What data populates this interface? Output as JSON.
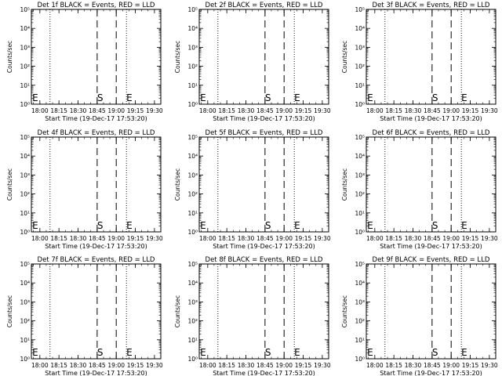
{
  "chart_data": [
    {
      "type": "line",
      "title": "Det 1f BLACK = Events, RED = LLD",
      "xlabel": "Start Time (19-Dec-17 17:53:20)",
      "ylabel": "Counts/sec",
      "xticks": [
        "18:00",
        "18:15",
        "18:30",
        "18:45",
        "19:00",
        "19:15",
        "19:30"
      ],
      "yticks": [
        "10⁰",
        "10¹",
        "10²",
        "10³",
        "10⁴",
        "10⁵"
      ],
      "ylim": [
        "10⁰",
        "10⁵"
      ],
      "xlim": [
        "17:53:20",
        "19:35"
      ],
      "yscale": "log",
      "dotted_lines": [
        "18:08",
        "19:08"
      ],
      "dashed_lines": [
        "18:45",
        "19:00"
      ],
      "markers": [
        {
          "text": "E",
          "x": "17:54"
        },
        {
          "text": "S",
          "x": "18:45"
        },
        {
          "text": "E",
          "x": "19:08"
        }
      ]
    },
    {
      "type": "line",
      "title": "Det 2f BLACK = Events, RED = LLD",
      "xlabel": "Start Time (19-Dec-17 17:53:20)",
      "ylabel": "Counts/sec",
      "xticks": [
        "18:00",
        "18:15",
        "18:30",
        "18:45",
        "19:00",
        "19:15",
        "19:30"
      ],
      "yticks": [
        "10⁰",
        "10¹",
        "10²",
        "10³",
        "10⁴",
        "10⁵"
      ],
      "ylim": [
        "10⁰",
        "10⁵"
      ],
      "xlim": [
        "17:53:20",
        "19:35"
      ],
      "yscale": "log",
      "dotted_lines": [
        "18:08",
        "19:08"
      ],
      "dashed_lines": [
        "18:45",
        "19:00"
      ],
      "markers": [
        {
          "text": "E",
          "x": "17:54"
        },
        {
          "text": "S",
          "x": "18:45"
        },
        {
          "text": "E",
          "x": "19:08"
        }
      ]
    },
    {
      "type": "line",
      "title": "Det 3f BLACK = Events, RED = LLD",
      "xlabel": "Start Time (19-Dec-17 17:53:20)",
      "ylabel": "Counts/sec",
      "xticks": [
        "18:00",
        "18:15",
        "18:30",
        "18:45",
        "19:00",
        "19:15",
        "19:30"
      ],
      "yticks": [
        "10⁰",
        "10¹",
        "10²",
        "10³",
        "10⁴",
        "10⁵"
      ],
      "ylim": [
        "10⁰",
        "10⁵"
      ],
      "xlim": [
        "17:53:20",
        "19:35"
      ],
      "yscale": "log",
      "dotted_lines": [
        "18:08",
        "19:08"
      ],
      "dashed_lines": [
        "18:45",
        "19:00"
      ],
      "markers": [
        {
          "text": "E",
          "x": "17:54"
        },
        {
          "text": "S",
          "x": "18:45"
        },
        {
          "text": "E",
          "x": "19:08"
        }
      ]
    },
    {
      "type": "line",
      "title": "Det 4f BLACK = Events, RED = LLD",
      "xlabel": "Start Time (19-Dec-17 17:53:20)",
      "ylabel": "Counts/sec",
      "xticks": [
        "18:00",
        "18:15",
        "18:30",
        "18:45",
        "19:00",
        "19:15",
        "19:30"
      ],
      "yticks": [
        "10⁰",
        "10¹",
        "10²",
        "10³",
        "10⁴",
        "10⁵"
      ],
      "ylim": [
        "10⁰",
        "10⁵"
      ],
      "xlim": [
        "17:53:20",
        "19:35"
      ],
      "yscale": "log",
      "dotted_lines": [
        "18:08",
        "19:08"
      ],
      "dashed_lines": [
        "18:45",
        "19:00"
      ],
      "markers": [
        {
          "text": "E",
          "x": "17:54"
        },
        {
          "text": "S",
          "x": "18:45"
        },
        {
          "text": "E",
          "x": "19:08"
        }
      ]
    },
    {
      "type": "line",
      "title": "Det 5f BLACK = Events, RED = LLD",
      "xlabel": "Start Time (19-Dec-17 17:53:20)",
      "ylabel": "Counts/sec",
      "xticks": [
        "18:00",
        "18:15",
        "18:30",
        "18:45",
        "19:00",
        "19:15",
        "19:30"
      ],
      "yticks": [
        "10⁰",
        "10¹",
        "10²",
        "10³",
        "10⁴",
        "10⁵"
      ],
      "ylim": [
        "10⁰",
        "10⁵"
      ],
      "xlim": [
        "17:53:20",
        "19:35"
      ],
      "yscale": "log",
      "dotted_lines": [
        "18:08",
        "19:08"
      ],
      "dashed_lines": [
        "18:45",
        "19:00"
      ],
      "markers": [
        {
          "text": "E",
          "x": "17:54"
        },
        {
          "text": "S",
          "x": "18:45"
        },
        {
          "text": "E",
          "x": "19:08"
        }
      ]
    },
    {
      "type": "line",
      "title": "Det 6f BLACK = Events, RED = LLD",
      "xlabel": "Start Time (19-Dec-17 17:53:20)",
      "ylabel": "Counts/sec",
      "xticks": [
        "18:00",
        "18:15",
        "18:30",
        "18:45",
        "19:00",
        "19:15",
        "19:30"
      ],
      "yticks": [
        "10⁰",
        "10¹",
        "10²",
        "10³",
        "10⁴",
        "10⁵"
      ],
      "ylim": [
        "10⁰",
        "10⁵"
      ],
      "xlim": [
        "17:53:20",
        "19:35"
      ],
      "yscale": "log",
      "dotted_lines": [
        "18:08",
        "19:08"
      ],
      "dashed_lines": [
        "18:45",
        "19:00"
      ],
      "markers": [
        {
          "text": "E",
          "x": "17:54"
        },
        {
          "text": "S",
          "x": "18:45"
        },
        {
          "text": "E",
          "x": "19:08"
        }
      ]
    },
    {
      "type": "line",
      "title": "Det 7f BLACK = Events, RED = LLD",
      "xlabel": "Start Time (19-Dec-17 17:53:20)",
      "ylabel": "Counts/sec",
      "xticks": [
        "18:00",
        "18:15",
        "18:30",
        "18:45",
        "19:00",
        "19:15",
        "19:30"
      ],
      "yticks": [
        "10⁰",
        "10¹",
        "10²",
        "10³",
        "10⁴",
        "10⁵"
      ],
      "ylim": [
        "10⁰",
        "10⁵"
      ],
      "xlim": [
        "17:53:20",
        "19:35"
      ],
      "yscale": "log",
      "dotted_lines": [
        "18:08",
        "19:08"
      ],
      "dashed_lines": [
        "18:45",
        "19:00"
      ],
      "markers": [
        {
          "text": "E",
          "x": "17:54"
        },
        {
          "text": "S",
          "x": "18:45"
        },
        {
          "text": "E",
          "x": "19:08"
        }
      ]
    },
    {
      "type": "line",
      "title": "Det 8f BLACK = Events, RED = LLD",
      "xlabel": "Start Time (19-Dec-17 17:53:20)",
      "ylabel": "Counts/sec",
      "xticks": [
        "18:00",
        "18:15",
        "18:30",
        "18:45",
        "19:00",
        "19:15",
        "19:30"
      ],
      "yticks": [
        "10⁰",
        "10¹",
        "10²",
        "10³",
        "10⁴",
        "10⁵"
      ],
      "ylim": [
        "10⁰",
        "10⁵"
      ],
      "xlim": [
        "17:53:20",
        "19:35"
      ],
      "yscale": "log",
      "dotted_lines": [
        "18:08",
        "19:08"
      ],
      "dashed_lines": [
        "18:45",
        "19:00"
      ],
      "markers": [
        {
          "text": "E",
          "x": "17:54"
        },
        {
          "text": "S",
          "x": "18:45"
        },
        {
          "text": "E",
          "x": "19:08"
        }
      ]
    },
    {
      "type": "line",
      "title": "Det 9f BLACK = Events, RED = LLD",
      "xlabel": "Start Time (19-Dec-17 17:53:20)",
      "ylabel": "Counts/sec",
      "xticks": [
        "18:00",
        "18:15",
        "18:30",
        "18:45",
        "19:00",
        "19:15",
        "19:30"
      ],
      "yticks": [
        "10⁰",
        "10¹",
        "10²",
        "10³",
        "10⁴",
        "10⁵"
      ],
      "ylim": [
        "10⁰",
        "10⁵"
      ],
      "xlim": [
        "17:53:20",
        "19:35"
      ],
      "yscale": "log",
      "dotted_lines": [
        "18:08",
        "19:08"
      ],
      "dashed_lines": [
        "18:45",
        "19:00"
      ],
      "markers": [
        {
          "text": "E",
          "x": "17:54"
        },
        {
          "text": "S",
          "x": "18:45"
        },
        {
          "text": "E",
          "x": "19:08"
        }
      ]
    }
  ]
}
